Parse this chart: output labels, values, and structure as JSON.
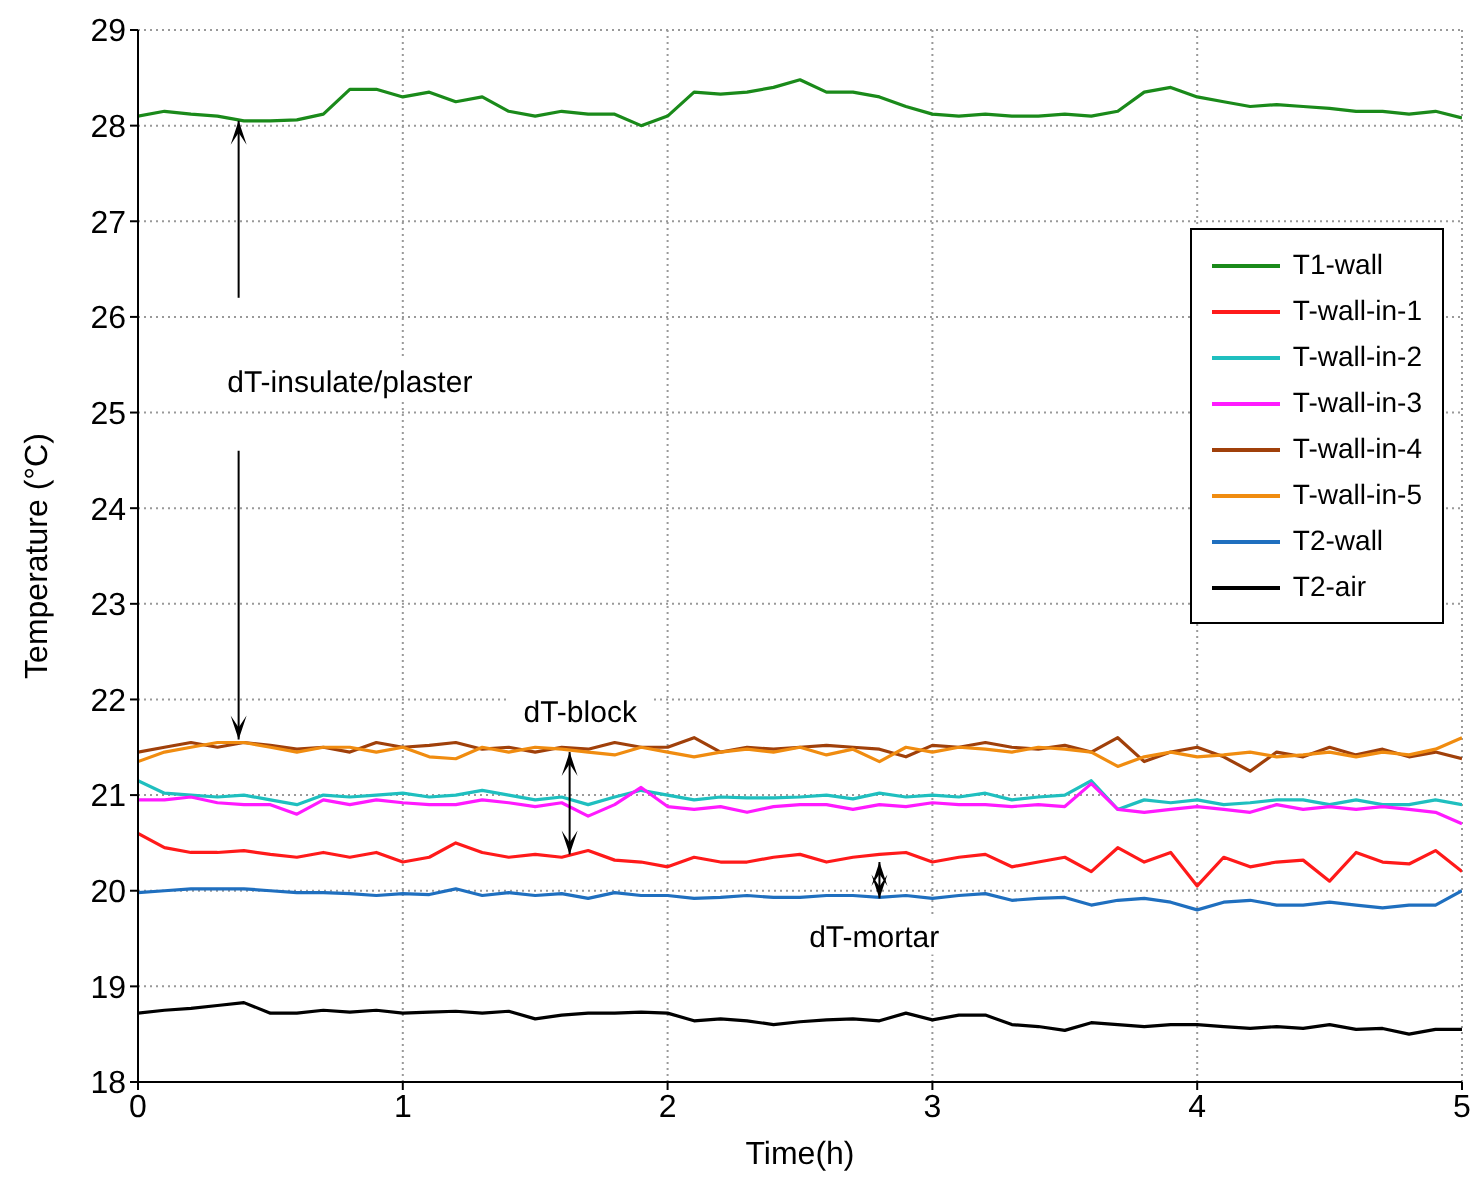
{
  "chart_data": {
    "type": "line",
    "xlabel": "Time(h)",
    "ylabel": "Temperature (°C)",
    "x": [
      0,
      0.1,
      0.2,
      0.3,
      0.4,
      0.5,
      0.6,
      0.7,
      0.8,
      0.9,
      1,
      1.1,
      1.2,
      1.3,
      1.4,
      1.5,
      1.6,
      1.7,
      1.8,
      1.9,
      2,
      2.1,
      2.2,
      2.3,
      2.4,
      2.5,
      2.6,
      2.7,
      2.8,
      2.9,
      3,
      3.1,
      3.2,
      3.3,
      3.4,
      3.5,
      3.6,
      3.7,
      3.8,
      3.9,
      4,
      4.1,
      4.2,
      4.3,
      4.4,
      4.5,
      4.6,
      4.7,
      4.8,
      4.9,
      5
    ],
    "series": [
      {
        "name": "T1-wall",
        "color": "#1a8a1a",
        "values": [
          28.1,
          28.15,
          28.12,
          28.1,
          28.05,
          28.05,
          28.06,
          28.12,
          28.38,
          28.38,
          28.3,
          28.35,
          28.25,
          28.3,
          28.15,
          28.1,
          28.15,
          28.12,
          28.12,
          28.0,
          28.1,
          28.35,
          28.33,
          28.35,
          28.4,
          28.48,
          28.35,
          28.35,
          28.3,
          28.2,
          28.12,
          28.1,
          28.12,
          28.1,
          28.1,
          28.12,
          28.1,
          28.15,
          28.35,
          28.4,
          28.3,
          28.25,
          28.2,
          28.22,
          28.2,
          28.18,
          28.15,
          28.15,
          28.12,
          28.15,
          28.08
        ]
      },
      {
        "name": "T-wall-in-1",
        "color": "#ff1a1a",
        "values": [
          20.6,
          20.45,
          20.4,
          20.4,
          20.42,
          20.38,
          20.35,
          20.4,
          20.35,
          20.4,
          20.3,
          20.35,
          20.5,
          20.4,
          20.35,
          20.38,
          20.35,
          20.42,
          20.32,
          20.3,
          20.25,
          20.35,
          20.3,
          20.3,
          20.35,
          20.38,
          20.3,
          20.35,
          20.38,
          20.4,
          20.3,
          20.35,
          20.38,
          20.25,
          20.3,
          20.35,
          20.2,
          20.45,
          20.3,
          20.4,
          20.05,
          20.35,
          20.25,
          20.3,
          20.32,
          20.1,
          20.4,
          20.3,
          20.28,
          20.42,
          20.2
        ]
      },
      {
        "name": "T-wall-in-2",
        "color": "#1fbfbf",
        "values": [
          21.15,
          21.02,
          21.0,
          20.98,
          21.0,
          20.95,
          20.9,
          21.0,
          20.98,
          21.0,
          21.02,
          20.98,
          21.0,
          21.05,
          21.0,
          20.95,
          20.98,
          20.9,
          20.98,
          21.05,
          21.0,
          20.95,
          20.98,
          20.97,
          20.97,
          20.98,
          21.0,
          20.96,
          21.02,
          20.98,
          21.0,
          20.98,
          21.02,
          20.95,
          20.98,
          21.0,
          21.15,
          20.85,
          20.95,
          20.92,
          20.95,
          20.9,
          20.92,
          20.95,
          20.95,
          20.9,
          20.95,
          20.9,
          20.9,
          20.95,
          20.9
        ]
      },
      {
        "name": "T-wall-in-3",
        "color": "#ff1aff",
        "values": [
          20.95,
          20.95,
          20.98,
          20.92,
          20.9,
          20.9,
          20.8,
          20.95,
          20.9,
          20.95,
          20.92,
          20.9,
          20.9,
          20.95,
          20.92,
          20.88,
          20.92,
          20.78,
          20.9,
          21.08,
          20.88,
          20.85,
          20.88,
          20.82,
          20.88,
          20.9,
          20.9,
          20.85,
          20.9,
          20.88,
          20.92,
          20.9,
          20.9,
          20.88,
          20.9,
          20.88,
          21.12,
          20.85,
          20.82,
          20.85,
          20.88,
          20.85,
          20.82,
          20.9,
          20.85,
          20.88,
          20.85,
          20.88,
          20.85,
          20.82,
          20.7
        ]
      },
      {
        "name": "T-wall-in-4",
        "color": "#a0400a",
        "values": [
          21.45,
          21.5,
          21.55,
          21.5,
          21.55,
          21.52,
          21.48,
          21.5,
          21.45,
          21.55,
          21.5,
          21.52,
          21.55,
          21.48,
          21.5,
          21.45,
          21.5,
          21.48,
          21.55,
          21.5,
          21.5,
          21.6,
          21.45,
          21.5,
          21.48,
          21.5,
          21.52,
          21.5,
          21.48,
          21.4,
          21.52,
          21.5,
          21.55,
          21.5,
          21.48,
          21.52,
          21.45,
          21.6,
          21.35,
          21.45,
          21.5,
          21.4,
          21.25,
          21.45,
          21.4,
          21.5,
          21.42,
          21.48,
          21.4,
          21.45,
          21.38
        ]
      },
      {
        "name": "T-wall-in-5",
        "color": "#f08c10",
        "values": [
          21.35,
          21.45,
          21.5,
          21.55,
          21.55,
          21.5,
          21.45,
          21.5,
          21.5,
          21.45,
          21.5,
          21.4,
          21.38,
          21.5,
          21.45,
          21.5,
          21.48,
          21.45,
          21.42,
          21.5,
          21.45,
          21.4,
          21.45,
          21.48,
          21.45,
          21.5,
          21.42,
          21.48,
          21.35,
          21.5,
          21.45,
          21.5,
          21.48,
          21.45,
          21.5,
          21.48,
          21.45,
          21.3,
          21.4,
          21.45,
          21.4,
          21.42,
          21.45,
          21.4,
          21.42,
          21.45,
          21.4,
          21.45,
          21.42,
          21.48,
          21.6
        ]
      },
      {
        "name": "T2-wall",
        "color": "#1f6fbf",
        "values": [
          19.98,
          20.0,
          20.02,
          20.02,
          20.02,
          20.0,
          19.98,
          19.98,
          19.97,
          19.95,
          19.97,
          19.96,
          20.02,
          19.95,
          19.98,
          19.95,
          19.97,
          19.92,
          19.98,
          19.95,
          19.95,
          19.92,
          19.93,
          19.95,
          19.93,
          19.93,
          19.95,
          19.95,
          19.93,
          19.95,
          19.92,
          19.95,
          19.97,
          19.9,
          19.92,
          19.93,
          19.85,
          19.9,
          19.92,
          19.88,
          19.8,
          19.88,
          19.9,
          19.85,
          19.85,
          19.88,
          19.85,
          19.82,
          19.85,
          19.85,
          20.0
        ]
      },
      {
        "name": "T2-air",
        "color": "#000000",
        "values": [
          18.72,
          18.75,
          18.77,
          18.8,
          18.83,
          18.72,
          18.72,
          18.75,
          18.73,
          18.75,
          18.72,
          18.73,
          18.74,
          18.72,
          18.74,
          18.66,
          18.7,
          18.72,
          18.72,
          18.73,
          18.72,
          18.64,
          18.66,
          18.64,
          18.6,
          18.63,
          18.65,
          18.66,
          18.64,
          18.72,
          18.65,
          18.7,
          18.7,
          18.6,
          18.58,
          18.54,
          18.62,
          18.6,
          18.58,
          18.6,
          18.6,
          18.58,
          18.56,
          18.58,
          18.56,
          18.6,
          18.55,
          18.56,
          18.5,
          18.55,
          18.55
        ]
      }
    ],
    "xlim": [
      0,
      5
    ],
    "xticks": [
      0,
      1,
      2,
      3,
      4,
      5
    ],
    "ylim": [
      18,
      29
    ],
    "yticks": [
      18,
      19,
      20,
      21,
      22,
      23,
      24,
      25,
      26,
      27,
      28,
      29
    ],
    "grid": true,
    "legend": "top right",
    "marker": "none",
    "line_style": "solid",
    "annotations": [
      "dT-insulate/plaster",
      {
        "text": "dT-block",
        "x": 1.63,
        "y": 21.45
      },
      {
        "text": "dT-mortar",
        "x": 2.8,
        "y": 20.3
      }
    ]
  }
}
